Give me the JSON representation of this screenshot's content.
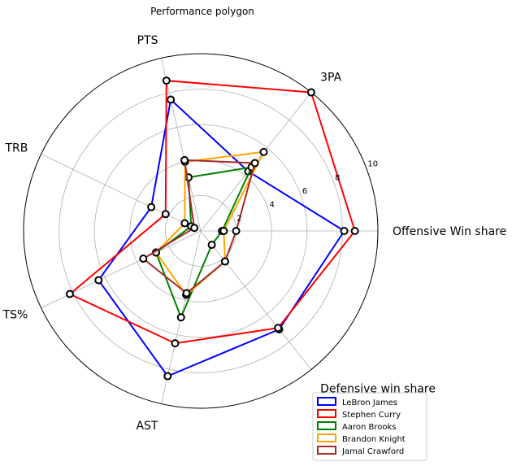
{
  "chart_data": {
    "type": "radar",
    "title": "Performance polygon",
    "axes": [
      "Offensive Win share",
      "Defensive win share",
      "AST",
      "TS%",
      "TRB",
      "PTS",
      "3PA"
    ],
    "rlim": [
      0,
      10
    ],
    "radial_ticks": [
      2,
      4,
      6,
      8,
      10
    ],
    "grid": true,
    "legend_position": "lower-right",
    "series": [
      {
        "name": "LeBron James",
        "color": "#0000ff",
        "values": [
          8.1,
          7.1,
          8.4,
          6.4,
          3.1,
          7.6,
          4.3
        ]
      },
      {
        "name": "Stephen Curry",
        "color": "#ff0000",
        "values": [
          8.7,
          7.0,
          6.5,
          8.2,
          2.2,
          8.7,
          10.0
        ]
      },
      {
        "name": "Aaron Brooks",
        "color": "#008000",
        "values": [
          1.2,
          1.0,
          5.0,
          2.8,
          0.6,
          3.1,
          4.6
        ]
      },
      {
        "name": "Brandon Knight",
        "color": "#ffa500",
        "values": [
          1.3,
          2.2,
          3.7,
          2.8,
          1.0,
          4.0,
          5.7
        ]
      },
      {
        "name": "Jamal Crawford",
        "color": "#a52a2a",
        "values": [
          2.0,
          2.2,
          3.6,
          3.6,
          0.4,
          4.1,
          4.9
        ]
      }
    ]
  }
}
